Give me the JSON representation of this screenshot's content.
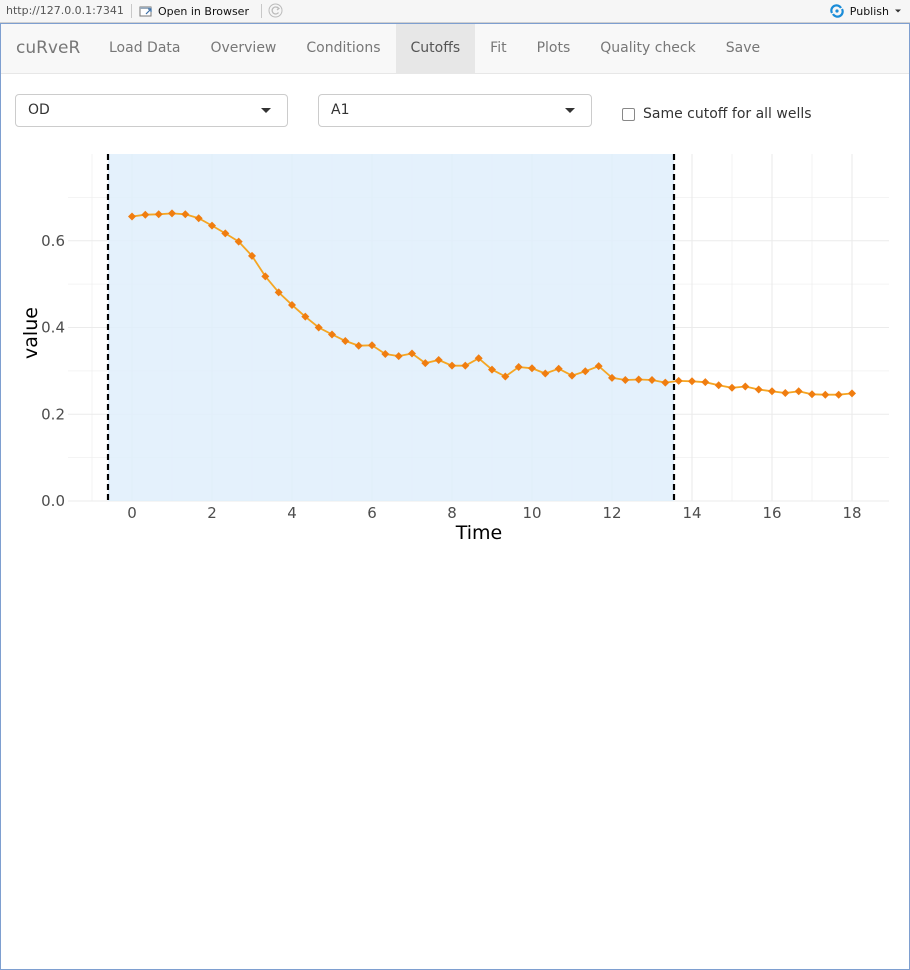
{
  "browser": {
    "url": "http://127.0.0.1:7341",
    "open_label": "Open in Browser",
    "publish_label": "Publish"
  },
  "app": {
    "brand": "cuRveR",
    "tabs": [
      {
        "label": "Load Data",
        "active": false
      },
      {
        "label": "Overview",
        "active": false
      },
      {
        "label": "Conditions",
        "active": false
      },
      {
        "label": "Cutoffs",
        "active": true
      },
      {
        "label": "Fit",
        "active": false
      },
      {
        "label": "Plots",
        "active": false
      },
      {
        "label": "Quality check",
        "active": false
      },
      {
        "label": "Save",
        "active": false
      }
    ]
  },
  "controls": {
    "variable_select": "OD",
    "well_select": "A1",
    "same_cutoff_label": "Same cutoff for all wells",
    "same_cutoff_checked": false
  },
  "chart_data": {
    "type": "line",
    "xlabel": "Time",
    "ylabel": "value",
    "xlim": [
      -1,
      18.9
    ],
    "ylim": [
      0,
      0.8
    ],
    "xticks": [
      0,
      2,
      4,
      6,
      8,
      10,
      12,
      14,
      16,
      18
    ],
    "yticks": [
      0.0,
      0.2,
      0.4,
      0.6
    ],
    "ytick_labels": [
      "0.0",
      "0.2",
      "0.4",
      "0.6"
    ],
    "grid": true,
    "cutoff_range": [
      -0.6,
      13.55
    ],
    "shade_color": "#dfeffb",
    "line_color": "#f5a623",
    "point_color": "#f07d10",
    "cutoff_line_color": "#000000",
    "series": [
      {
        "x": [
          0,
          0.333,
          0.667,
          1,
          1.333,
          1.667,
          2,
          2.333,
          2.667,
          3,
          3.333,
          3.667,
          4,
          4.333,
          4.667,
          5,
          5.333,
          5.667,
          6,
          6.333,
          6.667,
          7,
          7.333,
          7.667,
          8,
          8.333,
          8.667,
          9,
          9.333,
          9.667,
          10,
          10.333,
          10.667,
          11,
          11.333,
          11.667,
          12,
          12.333,
          12.667,
          13,
          13.333,
          13.667,
          14,
          14.333,
          14.667,
          15,
          15.333,
          15.667,
          16,
          16.333,
          16.667,
          17,
          17.333,
          17.667,
          18
        ],
        "values": [
          0.656,
          0.66,
          0.661,
          0.663,
          0.661,
          0.652,
          0.635,
          0.617,
          0.598,
          0.565,
          0.518,
          0.481,
          0.452,
          0.425,
          0.4,
          0.384,
          0.369,
          0.358,
          0.359,
          0.339,
          0.334,
          0.34,
          0.318,
          0.325,
          0.312,
          0.312,
          0.329,
          0.303,
          0.287,
          0.309,
          0.306,
          0.294,
          0.305,
          0.289,
          0.299,
          0.311,
          0.284,
          0.279,
          0.28,
          0.279,
          0.273,
          0.277,
          0.276,
          0.274,
          0.267,
          0.261,
          0.264,
          0.257,
          0.253,
          0.249,
          0.253,
          0.246,
          0.245,
          0.245,
          0.248
        ]
      }
    ]
  }
}
